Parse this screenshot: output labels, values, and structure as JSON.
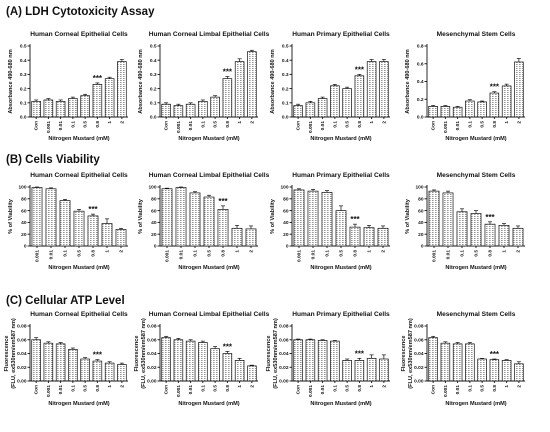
{
  "figure": {
    "sections": [
      {
        "label": "(A) LDH Cytotoxicity Assay"
      },
      {
        "label": "(B) Cells Viability"
      },
      {
        "label": "(C) Cellular ATP Level"
      }
    ]
  },
  "colors": {
    "bar_fill": "#ffffff",
    "bar_texture": "#8a8a8a",
    "axis": "#111111"
  },
  "chart_data": [
    {
      "id": "A1",
      "row": 0,
      "col": 0,
      "type": "bar",
      "title": "Human Corneal  Epithelial  Cells",
      "xlabel": "Nitrogen Mustard  (mM)",
      "ylabel": "Absorbance 490-680 nm",
      "ylim": [
        0,
        0.5
      ],
      "yticks": [
        0,
        0.1,
        0.2,
        0.3,
        0.4,
        0.5
      ],
      "ytick_labels": [
        "0.0",
        "0.1",
        "0.2",
        "0.3",
        "0.4",
        "0.5"
      ],
      "categories": [
        "Con",
        "0.001",
        "0.01",
        "0.1",
        "0.5",
        "0.8",
        "1",
        "2"
      ],
      "values": [
        0.11,
        0.12,
        0.11,
        0.13,
        0.15,
        0.23,
        0.27,
        0.39
      ],
      "errors": [
        0.01,
        0.01,
        0.01,
        0.01,
        0.01,
        0.01,
        0.01,
        0.015
      ],
      "annotation": {
        "text": "***",
        "category": "0.8"
      }
    },
    {
      "id": "A2",
      "row": 0,
      "col": 1,
      "type": "bar",
      "title": "Human Corneal  Limbal Epithelial  Cells",
      "xlabel": "Nitrogen Mustard  (mM)",
      "ylabel": "Absorbance 490-680 nm",
      "ylim": [
        0,
        0.5
      ],
      "yticks": [
        0,
        0.1,
        0.2,
        0.3,
        0.4,
        0.5
      ],
      "ytick_labels": [
        "0.0",
        "0.1",
        "0.2",
        "0.3",
        "0.4",
        "0.5"
      ],
      "categories": [
        "Con",
        "0.001",
        "0.01",
        "0.1",
        "0.5",
        "0.8",
        "1",
        "2"
      ],
      "values": [
        0.09,
        0.08,
        0.09,
        0.11,
        0.14,
        0.27,
        0.39,
        0.46
      ],
      "errors": [
        0.01,
        0.01,
        0.01,
        0.01,
        0.01,
        0.015,
        0.02,
        0.01
      ],
      "annotation": {
        "text": "***",
        "category": "0.8"
      }
    },
    {
      "id": "A3",
      "row": 0,
      "col": 2,
      "type": "bar",
      "title": "Human Primary  Epithelial  Cells",
      "xlabel": "Nitrogen Mustard  (mM)",
      "ylabel": "Absorbance 490-680 nm",
      "ylim": [
        0,
        0.5
      ],
      "yticks": [
        0,
        0.1,
        0.2,
        0.3,
        0.4,
        0.5
      ],
      "ytick_labels": [
        "0.0",
        "0.1",
        "0.2",
        "0.3",
        "0.4",
        "0.5"
      ],
      "categories": [
        "Con",
        "0.001",
        "0.01",
        "0.1",
        "0.5",
        "0.8",
        "1",
        "2"
      ],
      "values": [
        0.08,
        0.1,
        0.13,
        0.22,
        0.2,
        0.29,
        0.39,
        0.39
      ],
      "errors": [
        0.01,
        0.01,
        0.01,
        0.01,
        0.01,
        0.01,
        0.015,
        0.015
      ],
      "annotation": {
        "text": "***",
        "category": "0.8"
      }
    },
    {
      "id": "A4",
      "row": 0,
      "col": 3,
      "type": "bar",
      "title": "Mesenchymal   Stem Cells",
      "xlabel": "Nitrogen Mustard  (mM)",
      "ylabel": "Absorbance 490-680 nm",
      "ylim": [
        0,
        0.8
      ],
      "yticks": [
        0,
        0.2,
        0.4,
        0.6,
        0.8
      ],
      "ytick_labels": [
        "0.0",
        "0.2",
        "0.4",
        "0.6",
        "0.8"
      ],
      "categories": [
        "Con",
        "0.001",
        "0.01",
        "0.1",
        "0.5",
        "0.8",
        "1",
        "2"
      ],
      "values": [
        0.12,
        0.12,
        0.11,
        0.18,
        0.17,
        0.27,
        0.35,
        0.62
      ],
      "errors": [
        0.01,
        0.01,
        0.01,
        0.015,
        0.01,
        0.015,
        0.02,
        0.04
      ],
      "annotation": {
        "text": "***",
        "category": "0.8"
      }
    },
    {
      "id": "B1",
      "row": 1,
      "col": 0,
      "type": "bar",
      "title": "Human Corneal  Epithelial  Cells",
      "xlabel": "Nitrogen Mustard  (mM)",
      "ylabel": "% of Viability",
      "ylim": [
        0,
        100
      ],
      "yticks": [
        0,
        20,
        40,
        60,
        80,
        100
      ],
      "ytick_labels": [
        "0",
        "20",
        "40",
        "60",
        "80",
        "100"
      ],
      "categories": [
        "0.001",
        "0.01",
        "0.1",
        "0.5",
        "0.8",
        "1",
        "2"
      ],
      "values": [
        99,
        97,
        77,
        59,
        51,
        38,
        28
      ],
      "errors": [
        1,
        1.5,
        2,
        3,
        3,
        8,
        2
      ],
      "annotation": {
        "text": "***",
        "category": "0.8"
      }
    },
    {
      "id": "B2",
      "row": 1,
      "col": 1,
      "type": "bar",
      "title": "Human Corneal  Limbal Epithelial  Cells",
      "xlabel": "Nitrogen Mustard  (mM)",
      "ylabel": "% of Viability",
      "ylim": [
        0,
        100
      ],
      "yticks": [
        0,
        20,
        40,
        60,
        80,
        100
      ],
      "ytick_labels": [
        "0",
        "20",
        "40",
        "60",
        "80",
        "100"
      ],
      "categories": [
        "0.001",
        "0.01",
        "0.1",
        "0.5",
        "0.8",
        "1",
        "2"
      ],
      "values": [
        97,
        99,
        90,
        83,
        62,
        30,
        29
      ],
      "errors": [
        1,
        1,
        2,
        3,
        6,
        5,
        5
      ],
      "annotation": {
        "text": "***",
        "category": "0.8"
      }
    },
    {
      "id": "B3",
      "row": 1,
      "col": 2,
      "type": "bar",
      "title": "Human Primary  Epithelial  Cells",
      "xlabel": "Nitrogen Mustard  (mM)",
      "ylabel": "% of Viability",
      "ylim": [
        0,
        100
      ],
      "yticks": [
        0,
        20,
        40,
        60,
        80,
        100
      ],
      "ytick_labels": [
        "0",
        "20",
        "40",
        "60",
        "80",
        "100"
      ],
      "categories": [
        "0.001",
        "0.01",
        "0.1",
        "0.5",
        "0.8",
        "1",
        "2"
      ],
      "values": [
        95,
        93,
        91,
        60,
        32,
        31,
        30
      ],
      "errors": [
        2,
        3,
        3,
        8,
        5,
        4,
        4
      ],
      "annotation": {
        "text": "***",
        "category": "0.8"
      }
    },
    {
      "id": "B4",
      "row": 1,
      "col": 3,
      "type": "bar",
      "title": "Mesenchymal   Stem Cells",
      "xlabel": "Nitrogen Mustard  (mM)",
      "ylabel": "% of Viability",
      "ylim": [
        0,
        100
      ],
      "yticks": [
        0,
        20,
        40,
        60,
        80,
        100
      ],
      "ytick_labels": [
        "0",
        "20",
        "40",
        "60",
        "80",
        "100"
      ],
      "categories": [
        "0.001",
        "0.01",
        "0.1",
        "0.5",
        "0.8",
        "1",
        "2"
      ],
      "values": [
        93,
        90,
        58,
        55,
        37,
        35,
        30
      ],
      "errors": [
        2,
        3,
        5,
        5,
        4,
        3,
        4
      ],
      "annotation": {
        "text": "***",
        "category": "0.8"
      }
    },
    {
      "id": "C1",
      "row": 2,
      "col": 0,
      "type": "bar",
      "title": "Human Corneal  Epithelial  Cells",
      "xlabel": "Nitrogen Mustard  (mM)",
      "ylabel": "Fluorescence (FLU, ex530nm/em587 nm)",
      "ylim": [
        0,
        0.08
      ],
      "yticks": [
        0,
        0.02,
        0.04,
        0.06,
        0.08
      ],
      "ytick_labels": [
        "0.00",
        "0.02",
        "0.04",
        "0.06",
        "0.08"
      ],
      "categories": [
        "Con",
        "0.001",
        "0.01",
        "0.1",
        "0.5",
        "0.8",
        "1",
        "2"
      ],
      "values": [
        0.06,
        0.055,
        0.054,
        0.046,
        0.032,
        0.029,
        0.026,
        0.024
      ],
      "errors": [
        0.003,
        0.002,
        0.002,
        0.002,
        0.002,
        0.002,
        0.002,
        0.002
      ],
      "annotation": {
        "text": "***",
        "category": "0.8"
      }
    },
    {
      "id": "C2",
      "row": 2,
      "col": 1,
      "type": "bar",
      "title": "Human Corneal  Limbal Epithelial  Cells",
      "xlabel": "Nitrogen Mustard  (mM)",
      "ylabel": "Fluorescence (FLU, ex530nm/em587 nm)",
      "ylim": [
        0,
        0.08
      ],
      "yticks": [
        0,
        0.02,
        0.04,
        0.06,
        0.08
      ],
      "ytick_labels": [
        "0.00",
        "0.02",
        "0.04",
        "0.06",
        "0.08"
      ],
      "categories": [
        "Con",
        "0.001",
        "0.01",
        "0.1",
        "0.5",
        "0.8",
        "1",
        "2"
      ],
      "values": [
        0.063,
        0.06,
        0.058,
        0.056,
        0.047,
        0.04,
        0.03,
        0.022
      ],
      "errors": [
        0.002,
        0.002,
        0.002,
        0.002,
        0.003,
        0.003,
        0.003,
        0.001
      ],
      "annotation": {
        "text": "***",
        "category": "0.8"
      }
    },
    {
      "id": "C3",
      "row": 2,
      "col": 2,
      "type": "bar",
      "title": "Human Primary  Epithelial  Cells",
      "xlabel": "Nitrogen Mustard  (mM)",
      "ylabel": "Fluorescence (FLU, ex530nm/em587 nm)",
      "ylim": [
        0,
        0.08
      ],
      "yticks": [
        0,
        0.02,
        0.04,
        0.06,
        0.08
      ],
      "ytick_labels": [
        "0.00",
        "0.02",
        "0.04",
        "0.06",
        "0.08"
      ],
      "categories": [
        "Con",
        "0.001",
        "0.01",
        "0.1",
        "0.5",
        "0.8",
        "1",
        "2"
      ],
      "values": [
        0.06,
        0.06,
        0.059,
        0.058,
        0.03,
        0.03,
        0.033,
        0.032
      ],
      "errors": [
        0.001,
        0.001,
        0.001,
        0.001,
        0.002,
        0.003,
        0.005,
        0.006
      ],
      "annotation": {
        "text": "***",
        "category": "0.8"
      }
    },
    {
      "id": "C4",
      "row": 2,
      "col": 3,
      "type": "bar",
      "title": "Mesenchymal   Stem Cells",
      "xlabel": "Nitrogen Mustard  (mM)",
      "ylabel": "Fluorescence (FLU, ex530nm/em587 nm)",
      "ylim": [
        0,
        0.08
      ],
      "yticks": [
        0,
        0.02,
        0.04,
        0.06,
        0.08
      ],
      "ytick_labels": [
        "0.00",
        "0.02",
        "0.04",
        "0.06",
        "0.08"
      ],
      "categories": [
        "Con",
        "0.001",
        "0.01",
        "0.1",
        "0.5",
        "0.8",
        "1",
        "2"
      ],
      "values": [
        0.063,
        0.055,
        0.054,
        0.054,
        0.032,
        0.031,
        0.03,
        0.025
      ],
      "errors": [
        0.002,
        0.002,
        0.002,
        0.002,
        0.001,
        0.001,
        0.001,
        0.003
      ],
      "annotation": {
        "text": "***",
        "category": "0.8"
      }
    }
  ]
}
